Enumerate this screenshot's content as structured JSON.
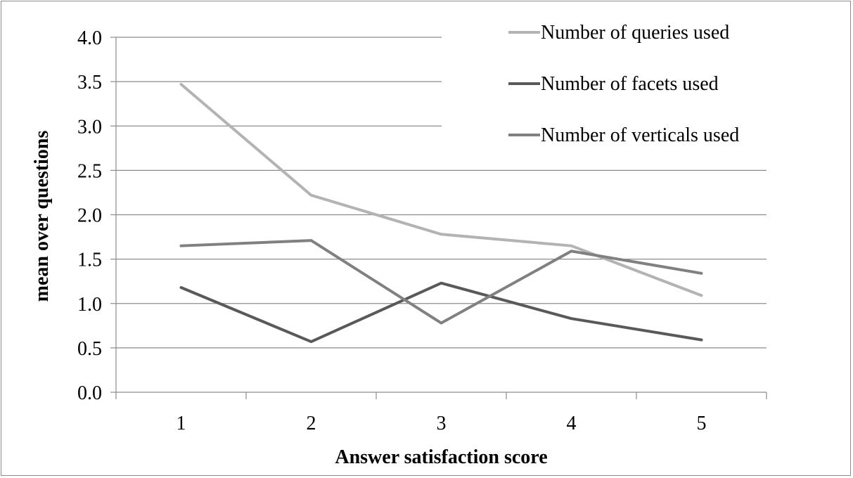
{
  "chart_data": {
    "type": "line",
    "title": "",
    "xlabel": "Answer satisfaction score",
    "ylabel": "mean over questions",
    "categories": [
      "1",
      "2",
      "3",
      "4",
      "5"
    ],
    "ylim": [
      0,
      4
    ],
    "yticks": [
      "0.0",
      "0.5",
      "1.0",
      "1.5",
      "2.0",
      "2.5",
      "3.0",
      "3.5",
      "4.0"
    ],
    "grid": true,
    "legend_position": "top-right",
    "series": [
      {
        "name": "Number of queries used",
        "color": "#b3b3b3",
        "values": [
          3.47,
          2.22,
          1.78,
          1.65,
          1.09
        ]
      },
      {
        "name": "Number of facets used",
        "color": "#595959",
        "values": [
          1.18,
          0.57,
          1.23,
          0.83,
          0.59
        ]
      },
      {
        "name": "Number of verticals used",
        "color": "#808080",
        "values": [
          1.65,
          1.71,
          0.78,
          1.59,
          1.34
        ]
      }
    ]
  }
}
